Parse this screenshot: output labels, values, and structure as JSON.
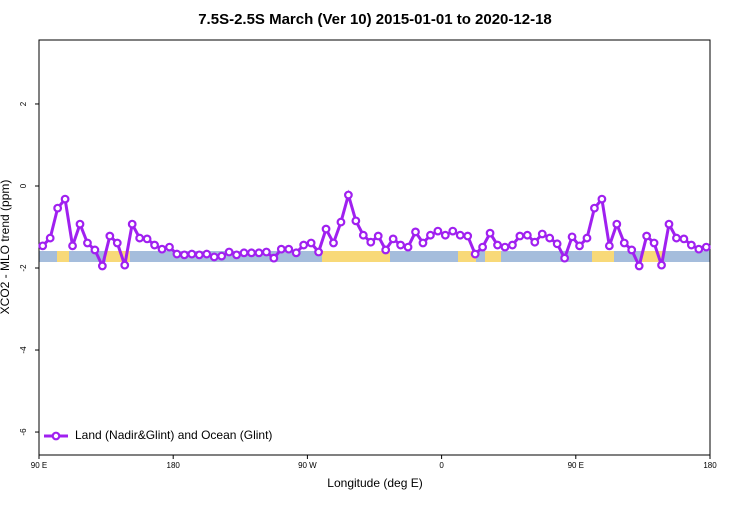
{
  "chart_data": {
    "type": "line",
    "title": "7.5S-2.5S March (Ver 10)   2015-01-01 to 2020-12-18",
    "x_label": "Longitude (deg E)",
    "y_label": "XCO2 - MLO trend (ppm)",
    "legend_position": "bottom-left",
    "xlim": [
      90,
      540
    ],
    "ylim": [
      -6.56,
      3.56
    ],
    "xticks": [
      {
        "value": 90,
        "label": "90 E"
      },
      180,
      {
        "value": 270,
        "label": "90 W"
      },
      {
        "value": 360,
        "label": "0"
      },
      {
        "value": 450,
        "label": "90 E"
      },
      {
        "value": 540,
        "label": "180"
      }
    ],
    "yticks": [
      -6,
      -4,
      -2,
      0,
      2
    ],
    "x": [
      92.5,
      97.5,
      102.5,
      107.5,
      112.5,
      117.5,
      122.5,
      127.5,
      132.5,
      137.5,
      142.5,
      147.5,
      152.5,
      157.5,
      162.5,
      167.5,
      172.5,
      177.5,
      182.5,
      187.5,
      192.5,
      197.5,
      202.5,
      207.5,
      212.5,
      217.5,
      222.5,
      227.5,
      232.5,
      237.5,
      242.5,
      247.5,
      252.5,
      257.5,
      262.5,
      267.5,
      272.5,
      277.5,
      282.5,
      287.5,
      292.5,
      297.5,
      302.5,
      307.5,
      312.5,
      317.5,
      322.5,
      327.5,
      332.5,
      337.5,
      342.5,
      347.5,
      352.5,
      357.5,
      362.5,
      367.5,
      372.5,
      377.5,
      382.5,
      387.5,
      392.5,
      397.5,
      402.5,
      407.5,
      412.5,
      417.5,
      422.5,
      427.5,
      432.5,
      437.5,
      442.5,
      447.5,
      452.5,
      457.5,
      462.5,
      467.5,
      472.5,
      477.5,
      482.5,
      487.5,
      492.5,
      497.5,
      502.5,
      507.5,
      512.5,
      517.5,
      522.5,
      527.5,
      532.5,
      537.5
    ],
    "series": [
      {
        "name": "Land (Nadir&Glint) and Ocean (Glint)",
        "color": "#a020f0",
        "values": [
          -1.46,
          -1.27,
          -0.54,
          -0.32,
          -1.46,
          -0.93,
          -1.39,
          -1.56,
          -1.95,
          -1.22,
          -1.39,
          -1.93,
          -0.93,
          -1.27,
          -1.29,
          -1.44,
          -1.54,
          -1.49,
          -1.66,
          -1.68,
          -1.66,
          -1.68,
          -1.66,
          -1.73,
          -1.71,
          -1.61,
          -1.68,
          -1.63,
          -1.63,
          -1.63,
          -1.61,
          -1.76,
          -1.54,
          -1.54,
          -1.63,
          -1.44,
          -1.39,
          -1.61,
          -1.05,
          -1.39,
          -0.88,
          -0.22,
          -0.85,
          -1.2,
          -1.37,
          -1.22,
          -1.56,
          -1.29,
          -1.44,
          -1.49,
          -1.12,
          -1.39,
          -1.2,
          -1.1,
          -1.2,
          -1.1,
          -1.2,
          -1.22,
          -1.66,
          -1.49,
          -1.15,
          -1.44,
          -1.49,
          -1.44,
          -1.22,
          -1.2,
          -1.37,
          -1.17,
          -1.27,
          -1.41,
          -1.76,
          -1.24,
          -1.46,
          -1.27,
          -0.54,
          -0.32,
          -1.46,
          -0.93,
          -1.39,
          -1.56,
          -1.95,
          -1.22,
          -1.39,
          -1.93,
          -0.93,
          -1.27,
          -1.29,
          -1.44,
          -1.54,
          -1.49
        ]
      }
    ]
  }
}
